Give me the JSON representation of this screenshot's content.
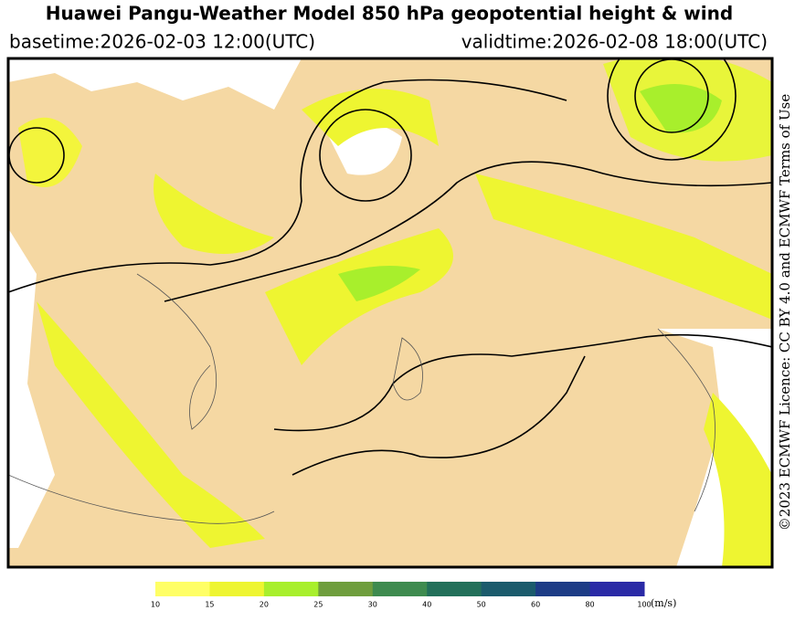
{
  "header": {
    "title": "Huawei Pangu-Weather Model 850 hPa geopotential height & wind",
    "basetime": "basetime:2026-02-03 12:00(UTC)",
    "validtime": "validtime:2026-02-08 18:00(UTC)"
  },
  "licence": "©2023 ECMWF Licence: CC BY 4.0 and ECMWF Terms of Use",
  "colorbar": {
    "ticks": [
      10,
      15,
      20,
      25,
      30,
      40,
      50,
      60,
      80,
      100
    ],
    "unit": "(m/s)",
    "colors": [
      "#ffff66",
      "#eef531",
      "#a8ef2c",
      "#6f9e3d",
      "#3e8b4f",
      "#23705a",
      "#1b5b6c",
      "#1d3c86",
      "#2a2aa6"
    ]
  }
}
